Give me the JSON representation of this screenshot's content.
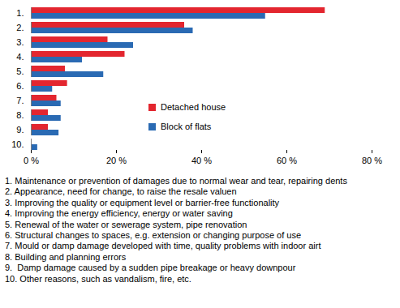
{
  "chart_data": {
    "type": "bar",
    "orientation": "horizontal",
    "categories": [
      "1.",
      "2.",
      "3.",
      "4.",
      "5.",
      "6.",
      "7.",
      "8.",
      "9.",
      "10."
    ],
    "series": [
      {
        "name": "Detached house",
        "color": "#e3262f",
        "values": [
          69,
          36,
          18,
          22,
          8,
          8.5,
          6,
          4,
          4,
          0
        ]
      },
      {
        "name": "Block of flats",
        "color": "#2a6ab3",
        "values": [
          55,
          38,
          24,
          12,
          17,
          5,
          7,
          7,
          6.5,
          1.5
        ]
      }
    ],
    "xlim": [
      0,
      80
    ],
    "xticks": [
      {
        "value": 0,
        "label": "0 %"
      },
      {
        "value": 20,
        "label": "20 %"
      },
      {
        "value": 40,
        "label": "40 %"
      },
      {
        "value": 60,
        "label": "60 %"
      },
      {
        "value": 80,
        "label": "80 %"
      }
    ],
    "legend": "center",
    "annotations": [
      "1. Maintenance or prevention of damages due to normal wear and tear, repairing dents",
      "2. Appearance, need for change, to raise the resale valuen",
      "3. Improving the quality or equipment level or barrier-free functionality",
      "4. Improving the energy efficiency, energy or water saving",
      "5. Renewal of the water or sewerage system, pipe renovation",
      "6. Structural changes to spaces, e.g. extension or changing purpose of use",
      "7. Mould or damp damage developed with time, quality problems with indoor airt",
      "8. Building and planning errors",
      "9.  Damp damage caused by a sudden pipe breakage or heavy downpour",
      "10. Other reasons, such as vandalism, fire, etc."
    ]
  }
}
